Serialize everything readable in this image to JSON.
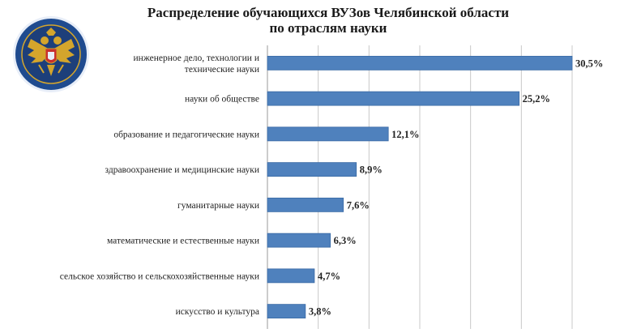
{
  "chart_data": {
    "type": "bar",
    "orientation": "horizontal",
    "title_lines": [
      "Распределение обучающихся ВУЗов  Челябинской области",
      "по отраслям науки"
    ],
    "categories": [
      [
        "инженерное дело, технологии и",
        "технические науки"
      ],
      [
        "науки об обществе"
      ],
      [
        "образование и педагогические науки"
      ],
      [
        "здравоохранение и медицинские науки"
      ],
      [
        "гуманитарные науки"
      ],
      [
        "математические и естественные науки"
      ],
      [
        "сельское хозяйство и сельскохозяйственные науки"
      ],
      [
        "искусство и культура"
      ]
    ],
    "values": [
      30.5,
      25.2,
      12.1,
      8.9,
      7.6,
      6.3,
      4.7,
      3.8
    ],
    "value_labels": [
      "30,5%",
      "25,2%",
      "12,1%",
      "8,9%",
      "7,6%",
      "6,3%",
      "4,7%",
      "3,8%"
    ],
    "xlim": [
      0,
      30.5
    ],
    "grid": true,
    "bar_color": "#4f81bd",
    "bar_border_color": "#3a6aa5",
    "grid_color": "#c8c8c8"
  },
  "emblem": {
    "icon": "double-headed-eagle-emblem",
    "ring_color": "#1f4b8f",
    "inner_color": "#1d3f7a",
    "eagle_color": "#d4a52c"
  }
}
